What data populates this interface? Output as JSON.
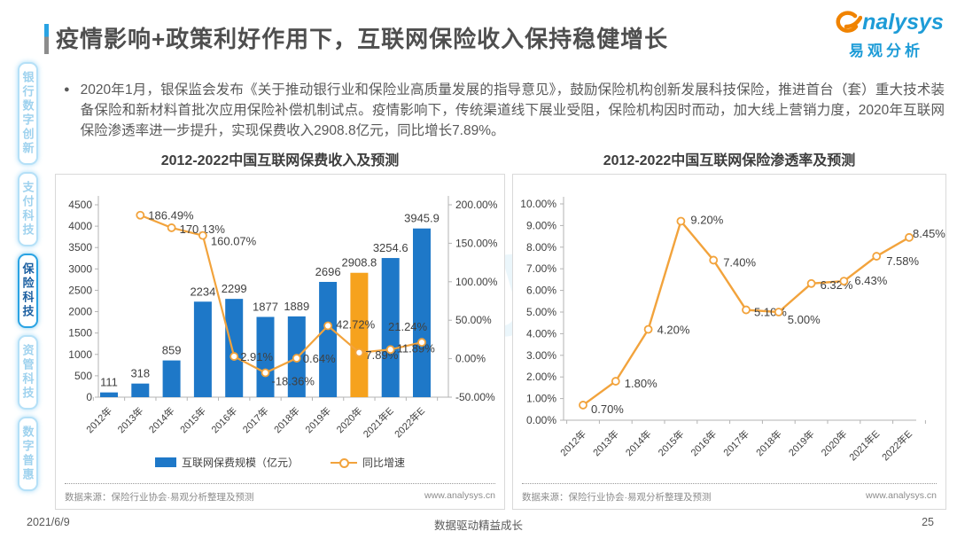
{
  "header": {
    "title": "疫情影响+政策利好作用下，互联网保险收入保持稳健增长",
    "logo": {
      "brand": "nalysys",
      "brand_cn": "易观分析"
    }
  },
  "sidebar": {
    "items": [
      {
        "label": "银行数字创新",
        "active": false
      },
      {
        "label": "支付科技",
        "active": false
      },
      {
        "label": "保险科技",
        "active": true
      },
      {
        "label": "资管科技",
        "active": false
      },
      {
        "label": "数字普惠",
        "active": false
      }
    ]
  },
  "bullet": {
    "marker": "●",
    "text": "2020年1月，银保监会发布《关于推动银行业和保险业高质量发展的指导意见》，鼓励保险机构创新发展科技保险，推进首台（套）重大技术装备保险和新材料首批次应用保险补偿机制试点。疫情影响下，传统渠道线下展业受阻，保险机构因时而动，加大线上营销力度，2020年互联网保险渗透率进一步提升，实现保费收入2908.8亿元，同比增长7.89%。"
  },
  "chart_data": [
    {
      "type": "bar",
      "title": "2012-2022中国互联网保费收入及预测",
      "categories": [
        "2012年",
        "2013年",
        "2014年",
        "2015年",
        "2016年",
        "2017年",
        "2018年",
        "2019年",
        "2020年",
        "2021年E",
        "2022年E"
      ],
      "series": [
        {
          "name": "互联网保费规模（亿元）",
          "type": "bar",
          "axis": "left",
          "values": [
            111,
            318,
            859,
            2234,
            2299,
            1877,
            1889,
            2696,
            2908.8,
            3254.6,
            3945.9
          ],
          "labels": [
            "111",
            "318",
            "859",
            "2234",
            "2299",
            "1877",
            "1889",
            "2696",
            "2908.8",
            "3254.6",
            "3945.9"
          ],
          "color": "#1e78c8",
          "highlight_index": 8,
          "highlight_color": "#f6a21d"
        },
        {
          "name": "同比增速",
          "type": "line",
          "axis": "right",
          "values": [
            null,
            186.49,
            170.13,
            160.07,
            2.91,
            -18.36,
            0.64,
            42.72,
            7.89,
            11.89,
            21.24
          ],
          "labels": [
            "",
            "186.49%",
            "170.13%",
            "160.07%",
            "2.91%",
            "-18.36%",
            "0.64%",
            "42.72%",
            "7.89%",
            "11.89%",
            "21.24%"
          ],
          "color": "#f2a33c"
        }
      ],
      "y_left": {
        "min": 0,
        "max": 4500,
        "step": 500,
        "ticks": [
          "4500",
          "4000",
          "3500",
          "3000",
          "2500",
          "2000",
          "1500",
          "1000",
          "500",
          "0"
        ]
      },
      "y_right": {
        "min": -50,
        "max": 200,
        "step": 50,
        "ticks": [
          "200.00%",
          "150.00%",
          "100.00%",
          "50.00%",
          "0.00%",
          "-50.00%"
        ]
      },
      "grid": false,
      "legend_position": "bottom",
      "source": "数据来源：保险行业协会·易观分析整理及预测",
      "website": "www.analysys.cn"
    },
    {
      "type": "line",
      "title": "2012-2022中国互联网保险渗透率及预测",
      "categories": [
        "2012年",
        "2013年",
        "2014年",
        "2015年",
        "2016年",
        "2017年",
        "2018年",
        "2019年",
        "2020年",
        "2021年E",
        "2022年E"
      ],
      "values": [
        0.7,
        1.8,
        4.2,
        9.2,
        7.4,
        5.1,
        5.0,
        6.32,
        6.43,
        7.58,
        8.45
      ],
      "labels": [
        "0.70%",
        "1.80%",
        "4.20%",
        "9.20%",
        "7.40%",
        "5.10%",
        "5.00%",
        "6.32%",
        "6.43%",
        "7.58%",
        "8.45%"
      ],
      "color": "#f2a33c",
      "y": {
        "min": 0,
        "max": 10,
        "step": 1,
        "ticks": [
          "10.00%",
          "9.00%",
          "8.00%",
          "7.00%",
          "6.00%",
          "5.00%",
          "4.00%",
          "3.00%",
          "2.00%",
          "1.00%",
          "0.00%"
        ]
      },
      "grid": false,
      "source": "数据来源：保险行业协会·易观分析整理及预测",
      "website": "www.analysys.cn"
    }
  ],
  "watermark": {
    "text_en": "Analysys",
    "text_cn": "易观分析"
  },
  "footer": {
    "date": "2021/6/9",
    "slogan": "数据驱动精益成长",
    "page": "25"
  }
}
